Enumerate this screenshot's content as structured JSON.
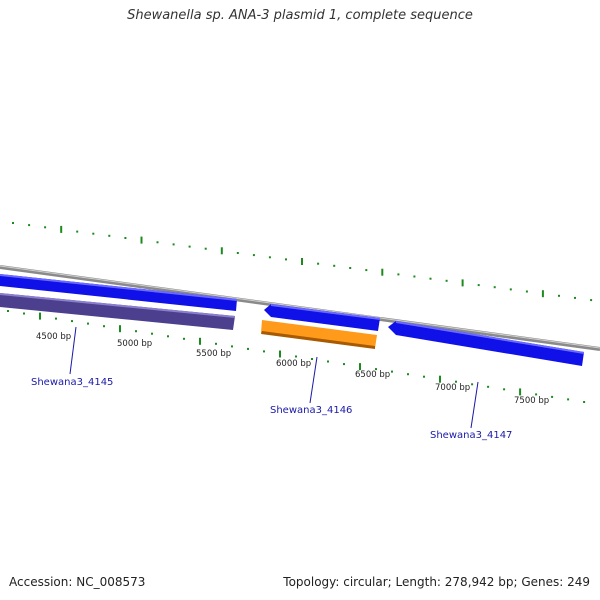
{
  "title": "Shewanella sp. ANA-3 plasmid 1, complete sequence",
  "accession": "Accession: NC_008573",
  "summary": "Topology: circular; Length: 278,942 bp; Genes: 249",
  "colors": {
    "backbone": "#8a8a8a",
    "tick": "#1c8a1c",
    "gene_forward": "#1010e8",
    "gene_reverse_a": "#4b3f8e",
    "gene_reverse_b": "#ff9a1a",
    "label": "#1a1aa8"
  },
  "ticks": [
    "4500 bp",
    "5000 bp",
    "5500 bp",
    "6000 bp",
    "6500 bp",
    "7000 bp",
    "7500 bp"
  ],
  "genes": [
    {
      "name": "Shewana3_4145",
      "color": "gene_reverse_a"
    },
    {
      "name": "Shewana3_4146",
      "color": "gene_reverse_b"
    },
    {
      "name": "Shewana3_4147",
      "color": "gene_forward"
    }
  ]
}
